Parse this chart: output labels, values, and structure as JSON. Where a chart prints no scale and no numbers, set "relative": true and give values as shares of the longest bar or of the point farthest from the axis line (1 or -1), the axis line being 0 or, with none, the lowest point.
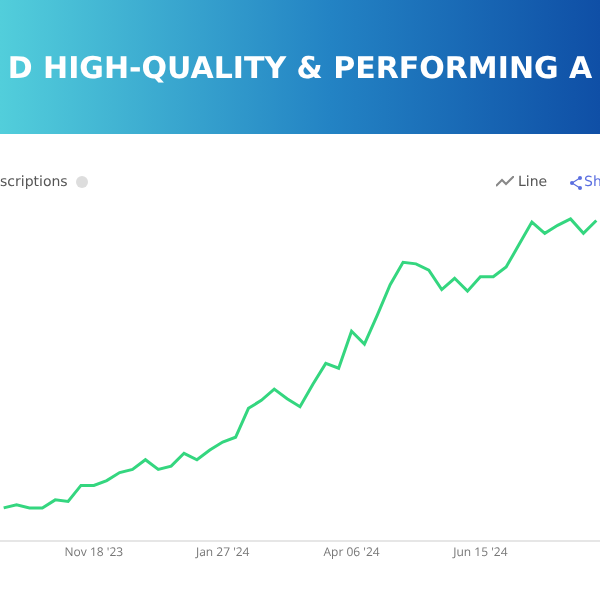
{
  "chart_data": {
    "type": "line",
    "title": "D HIGH-QUALITY & PERFORMING A",
    "subtitle": "scriptions",
    "annotations": [
      "Line",
      "Sh"
    ],
    "relative": true,
    "marker": "none",
    "line_style": "solid",
    "xlim": [
      "2023-09-28",
      "2024-08-19"
    ],
    "xticks": [
      {
        "value": "2023-11-18",
        "label": "Nov 18 '23"
      },
      {
        "value": "2024-01-27",
        "label": "Jan 27 '24"
      },
      {
        "value": "2024-04-06",
        "label": "Apr 06 '24"
      },
      {
        "value": "2024-06-15",
        "label": "Jun 15 '24"
      }
    ],
    "x": [
      "2023-09-30",
      "2023-10-07",
      "2023-10-14",
      "2023-10-21",
      "2023-10-28",
      "2023-11-04",
      "2023-11-11",
      "2023-11-18",
      "2023-11-25",
      "2023-12-02",
      "2023-12-09",
      "2023-12-16",
      "2023-12-23",
      "2023-12-30",
      "2024-01-06",
      "2024-01-13",
      "2024-01-20",
      "2024-01-27",
      "2024-02-03",
      "2024-02-10",
      "2024-02-17",
      "2024-02-24",
      "2024-03-02",
      "2024-03-09",
      "2024-03-16",
      "2024-03-23",
      "2024-03-30",
      "2024-04-06",
      "2024-04-13",
      "2024-04-20",
      "2024-04-27",
      "2024-05-04",
      "2024-05-11",
      "2024-05-18",
      "2024-05-25",
      "2024-06-01",
      "2024-06-08",
      "2024-06-15",
      "2024-06-22",
      "2024-06-29",
      "2024-07-06",
      "2024-07-13",
      "2024-07-20",
      "2024-07-27",
      "2024-08-03",
      "2024-08-10",
      "2024-08-17"
    ],
    "series": [
      {
        "color": "#34d67f",
        "values": [
          0.1,
          0.11,
          0.1,
          0.1,
          0.125,
          0.12,
          0.17,
          0.17,
          0.185,
          0.21,
          0.22,
          0.25,
          0.22,
          0.23,
          0.27,
          0.25,
          0.28,
          0.305,
          0.32,
          0.41,
          0.435,
          0.47,
          0.44,
          0.415,
          0.485,
          0.55,
          0.535,
          0.65,
          0.61,
          0.7,
          0.795,
          0.865,
          0.86,
          0.84,
          0.78,
          0.815,
          0.775,
          0.82,
          0.82,
          0.85,
          0.92,
          0.99,
          0.955,
          0.98,
          1,
          0.955,
          0.995
        ]
      }
    ]
  }
}
